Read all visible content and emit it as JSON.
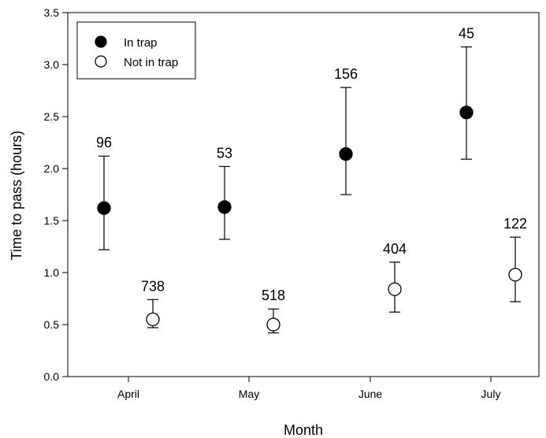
{
  "chart_data": {
    "type": "scatter",
    "xlabel": "Month",
    "ylabel": "Time to pass (hours)",
    "categories": [
      "April",
      "May",
      "June",
      "July"
    ],
    "ylim": [
      0.0,
      3.5
    ],
    "yticks": [
      "0.0",
      "0.5",
      "1.0",
      "1.5",
      "2.0",
      "2.5",
      "3.0",
      "3.5"
    ],
    "legend_position": "top-left",
    "grid": false,
    "series": [
      {
        "name": "In trap",
        "marker": "filled-circle",
        "color": "#000000",
        "values": [
          1.62,
          1.63,
          2.14,
          2.54
        ],
        "err_low": [
          1.22,
          1.32,
          1.75,
          2.09
        ],
        "err_high": [
          2.12,
          2.02,
          2.78,
          3.17
        ],
        "n_labels": [
          "96",
          "53",
          "156",
          "45"
        ]
      },
      {
        "name": "Not in trap",
        "marker": "open-circle",
        "color": "#ffffff",
        "values": [
          0.55,
          0.5,
          0.84,
          0.98
        ],
        "err_low": [
          0.47,
          0.42,
          0.62,
          0.72
        ],
        "err_high": [
          0.74,
          0.65,
          1.1,
          1.34
        ],
        "n_labels": [
          "738",
          "518",
          "404",
          "122"
        ]
      }
    ]
  }
}
